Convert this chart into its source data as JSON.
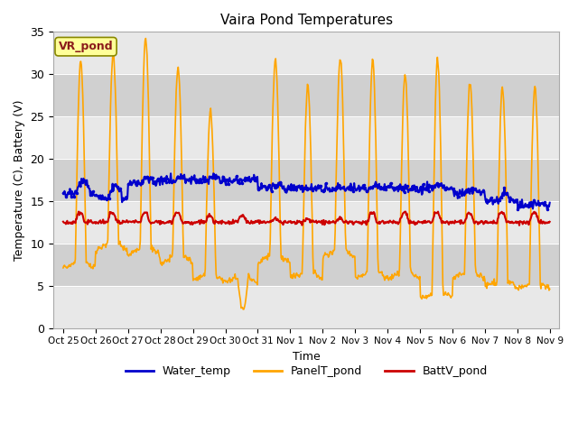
{
  "title": "Vaira Pond Temperatures",
  "xlabel": "Time",
  "ylabel": "Temperature (C), Battery (V)",
  "ylim": [
    0,
    35
  ],
  "x_tick_labels": [
    "Oct 25",
    "Oct 26",
    "Oct 27",
    "Oct 28",
    "Oct 29",
    "Oct 30",
    "Oct 31",
    "Nov 1",
    "Nov 2",
    "Nov 3",
    "Nov 4",
    "Nov 5",
    "Nov 6",
    "Nov 7",
    "Nov 8",
    "Nov 9"
  ],
  "annotation_text": "VR_pond",
  "annotation_bg": "#FFFF99",
  "annotation_border": "#8B1A1A",
  "water_temp_color": "#0000CC",
  "panel_temp_color": "#FFA500",
  "batt_v_color": "#CC0000",
  "background_color": "#FFFFFF",
  "plot_bg_color": "#E8E8E8",
  "band_dark_color": "#D0D0D0",
  "grid_color": "#FFFFFF",
  "legend_labels": [
    "Water_temp",
    "PanelT_pond",
    "BattV_pond"
  ],
  "panel_peaks": [
    31.5,
    32.3,
    34.2,
    30.8,
    25.5,
    2.2,
    31.8,
    28.5,
    31.8,
    31.5,
    30.0,
    31.8,
    29.0,
    28.5,
    28.5
  ],
  "panel_nights": [
    7.8,
    10.0,
    9.5,
    8.5,
    6.2,
    6.0,
    8.5,
    6.5,
    9.2,
    6.5,
    6.5,
    4.0,
    6.5,
    5.5,
    5.2
  ],
  "water_baseline": [
    16.0,
    15.5,
    17.2,
    17.5,
    17.5,
    17.5,
    16.5,
    16.5,
    16.5,
    16.5,
    16.5,
    16.5,
    16.0,
    15.0,
    14.5
  ],
  "water_peaks": [
    17.8,
    17.2,
    17.8,
    18.2,
    18.0,
    17.5,
    17.0,
    16.5,
    16.8,
    17.0,
    16.5,
    17.0,
    16.5,
    16.0,
    15.0
  ],
  "batt_baseline": [
    12.5,
    12.5,
    12.5,
    12.5,
    12.5,
    12.5,
    12.5,
    12.5,
    12.5,
    12.5,
    12.5,
    12.5,
    12.5,
    12.5,
    12.5
  ],
  "batt_peaks": [
    14.0,
    14.0,
    14.0,
    14.0,
    13.5,
    13.5,
    13.0,
    13.0,
    13.0,
    14.0,
    14.0,
    14.0,
    14.0,
    14.0,
    14.0
  ]
}
